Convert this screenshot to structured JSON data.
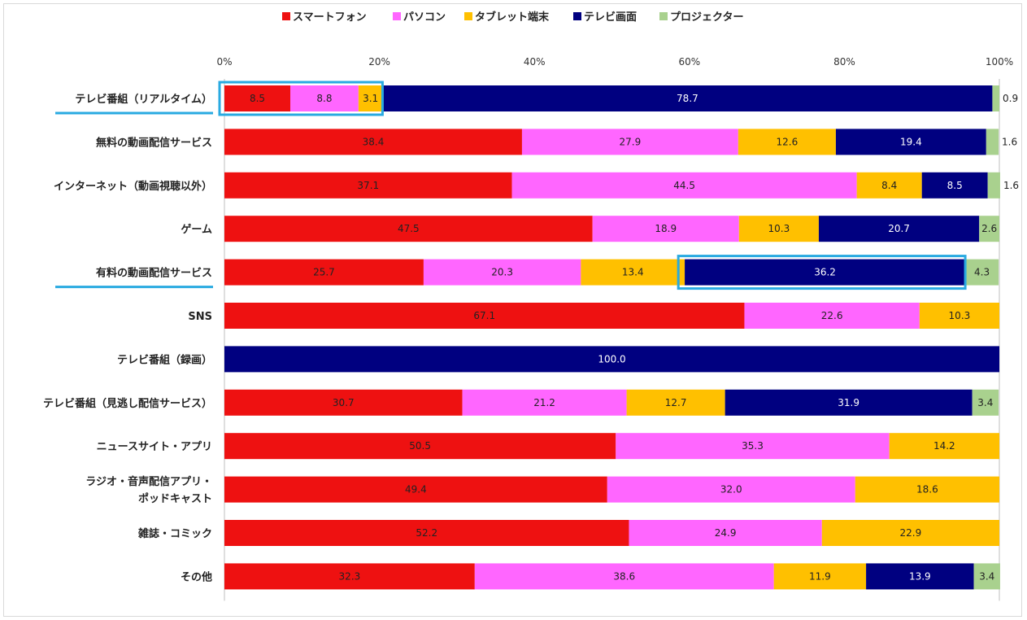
{
  "chart_data": {
    "type": "bar",
    "orientation": "horizontal",
    "stacked": "percent",
    "legend_position": "top",
    "grid": false,
    "xlim": [
      0,
      100
    ],
    "x_ticks": [
      "0%",
      "20%",
      "40%",
      "60%",
      "80%",
      "100%"
    ],
    "categories": [
      "テレビ番組（リアルタイム）",
      "無料の動画配信サービス",
      "インターネット（動画視聴以外）",
      "ゲーム",
      "有料の動画配信サービス",
      "SNS",
      "テレビ番組（録画）",
      "テレビ番組（見逃し配信サービス）",
      "ニュースサイト・アプリ",
      "ラジオ・音声配信アプリ・\nポッドキャスト",
      "雑誌・コミック",
      "その他"
    ],
    "underlined_categories": [
      0,
      4
    ],
    "series": [
      {
        "name": "スマートフォン",
        "color": "#ee1111",
        "values": [
          8.5,
          38.4,
          37.1,
          47.5,
          25.7,
          67.1,
          0,
          30.7,
          50.5,
          49.4,
          52.2,
          32.3
        ]
      },
      {
        "name": "パソコン",
        "color": "#ff66ff",
        "values": [
          8.8,
          27.9,
          44.5,
          18.9,
          20.3,
          22.6,
          0,
          21.2,
          35.3,
          32.0,
          24.9,
          38.6
        ]
      },
      {
        "name": "タブレット端末",
        "color": "#ffc000",
        "values": [
          3.1,
          12.6,
          8.4,
          10.3,
          13.4,
          10.3,
          0,
          12.7,
          14.2,
          18.6,
          22.9,
          11.9
        ]
      },
      {
        "name": "テレビ画面",
        "color": "#000080",
        "values": [
          78.7,
          19.4,
          8.5,
          20.7,
          36.2,
          0,
          100.0,
          31.9,
          0,
          0,
          0,
          13.9
        ]
      },
      {
        "name": "プロジェクター",
        "color": "#a9d18e",
        "values": [
          0.9,
          1.6,
          1.6,
          2.6,
          4.3,
          0,
          0,
          3.4,
          0,
          0,
          0,
          3.4
        ]
      }
    ],
    "highlights": [
      {
        "category_index": 0,
        "from": 0,
        "to": 20.4,
        "color": "#29aae1"
      },
      {
        "category_index": 4,
        "from": 59.2,
        "to": 95.6,
        "color": "#29aae1"
      }
    ]
  }
}
